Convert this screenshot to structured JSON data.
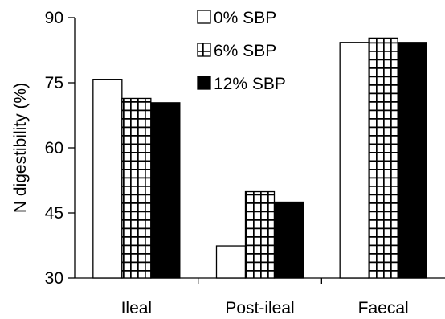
{
  "chart_data": {
    "type": "bar",
    "categories": [
      "Ileal",
      "Post-ileal",
      "Faecal"
    ],
    "series": [
      {
        "name": "0% SBP",
        "values": [
          75.8,
          37.4,
          84.3
        ],
        "pattern": "white",
        "color": "#ffffff"
      },
      {
        "name": "6% SBP",
        "values": [
          71.4,
          49.9,
          85.3
        ],
        "pattern": "grid",
        "color": "#ffffff"
      },
      {
        "name": "12% SBP",
        "values": [
          70.4,
          47.5,
          84.3
        ],
        "pattern": "solid",
        "color": "#000000"
      }
    ],
    "ylabel": "N digestibility (%)",
    "xlabel": "",
    "ylim": [
      30,
      90
    ],
    "yticks": [
      30,
      45,
      60,
      75,
      90
    ],
    "grid": false,
    "legend": "top-center"
  }
}
